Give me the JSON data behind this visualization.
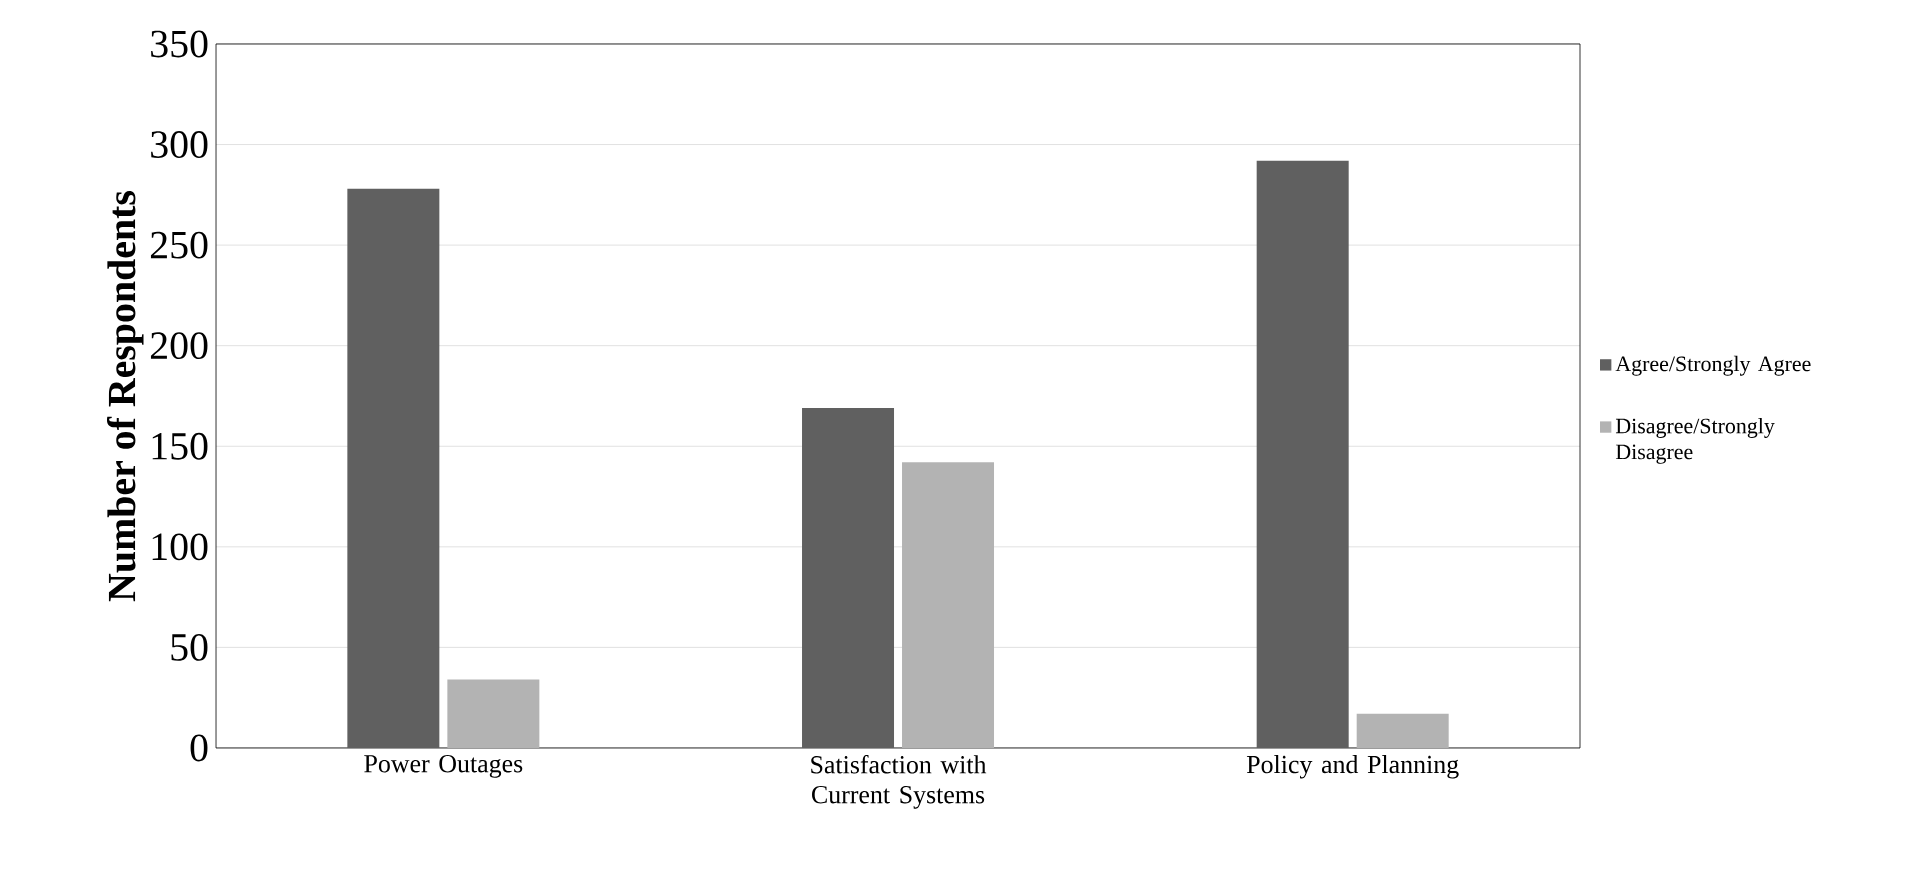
{
  "chart_data": {
    "type": "bar",
    "ylabel": "Number of Respondents",
    "categories": [
      "Power Outages",
      "Satisfaction with Current Systems",
      "Policy and Planning"
    ],
    "series": [
      {
        "name": "Agree/Strongly Agree",
        "color": "#606060",
        "values": [
          278,
          169,
          292
        ]
      },
      {
        "name": "Disagree/Strongly Disagree",
        "color": "#b3b3b3",
        "values": [
          34,
          142,
          17
        ]
      }
    ],
    "ylim": [
      0,
      350
    ],
    "yticks": [
      0,
      50,
      100,
      150,
      200,
      250,
      300,
      350
    ],
    "grid": "y",
    "legend": "right"
  }
}
